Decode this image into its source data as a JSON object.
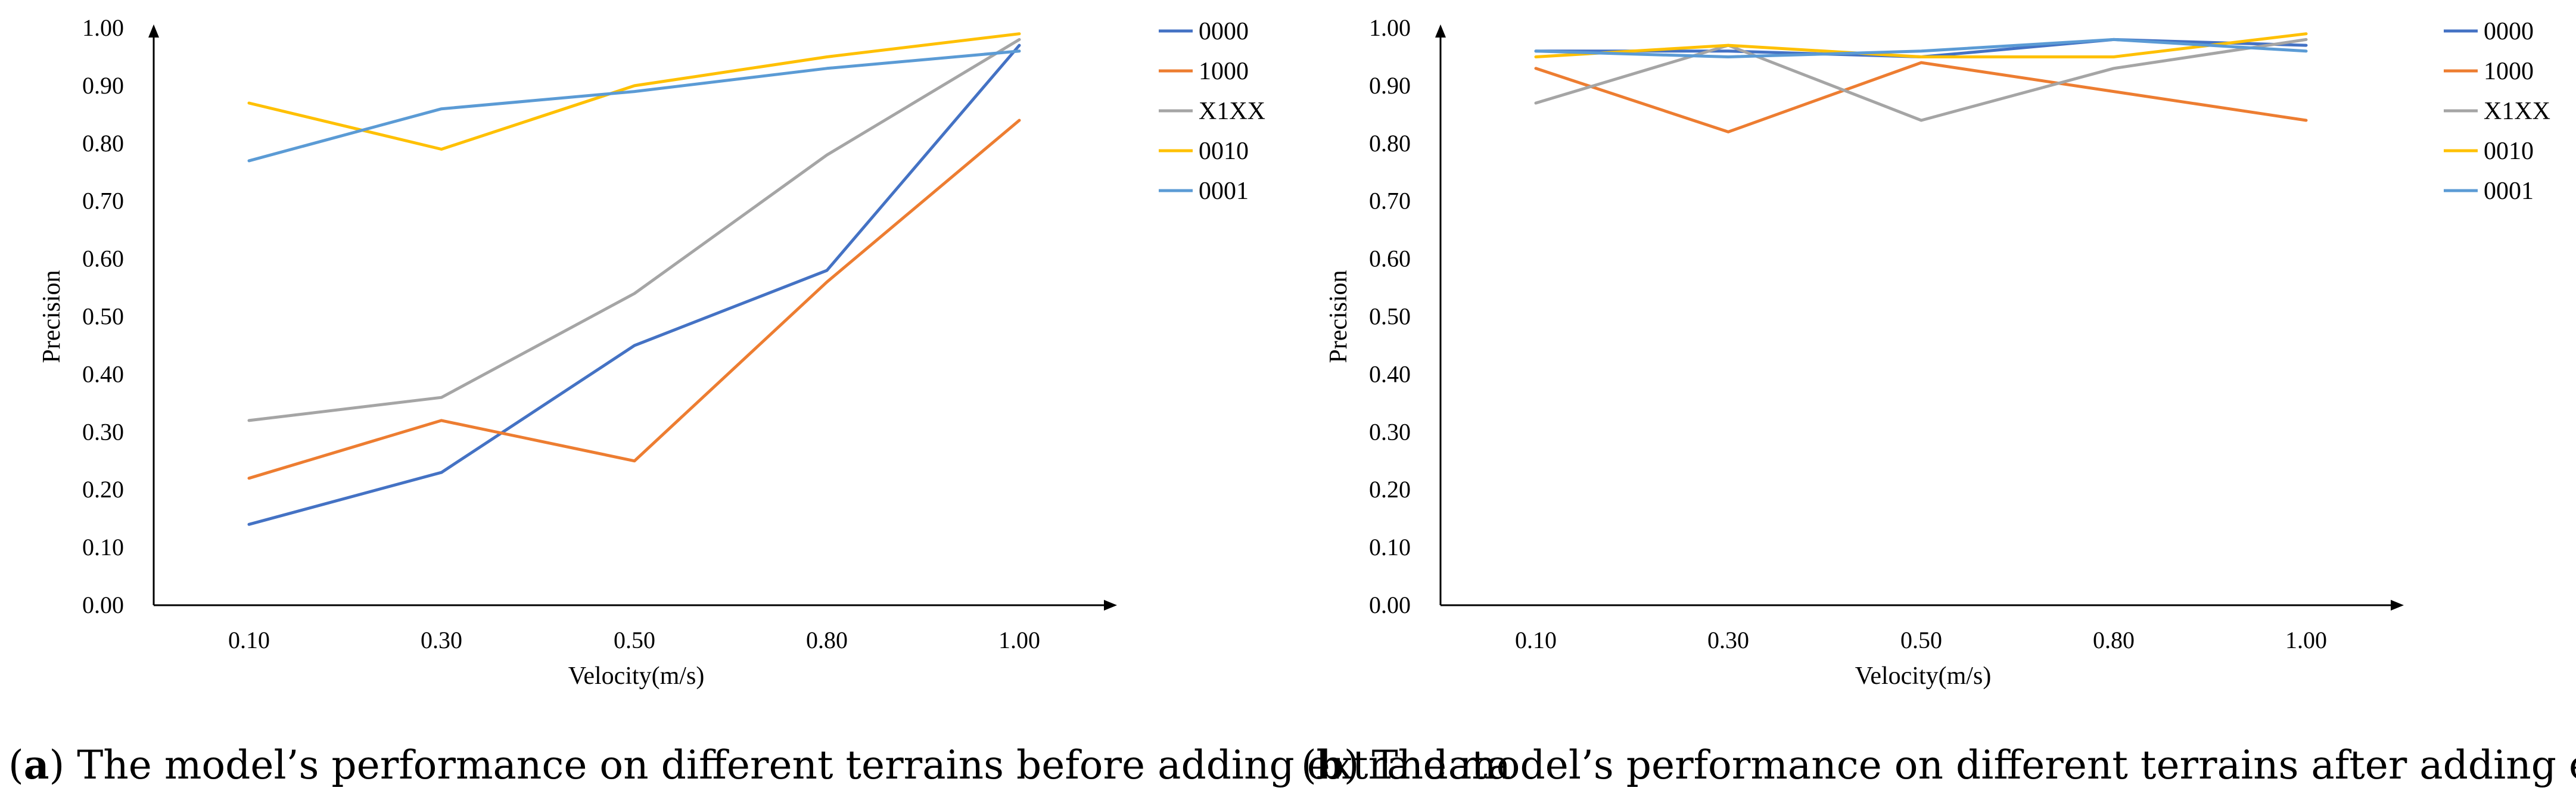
{
  "chart_data": [
    {
      "type": "line",
      "title": "",
      "xlabel": "Velocity(m/s)",
      "ylabel": "Precision",
      "categories": [
        "0.10",
        "0.30",
        "0.50",
        "0.80",
        "1.00"
      ],
      "ylim": [
        0,
        1
      ],
      "yticks": [
        "0.00",
        "0.10",
        "0.20",
        "0.30",
        "0.40",
        "0.50",
        "0.60",
        "0.70",
        "0.80",
        "0.90",
        "1.00"
      ],
      "grid": false,
      "legend_position": "right",
      "series": [
        {
          "name": "0000",
          "color": "#4472C4",
          "values": [
            0.14,
            0.23,
            0.45,
            0.58,
            0.97
          ]
        },
        {
          "name": "1000",
          "color": "#ED7D31",
          "values": [
            0.22,
            0.32,
            0.25,
            0.56,
            0.84
          ]
        },
        {
          "name": "X1XX",
          "color": "#A5A5A5",
          "values": [
            0.32,
            0.36,
            0.54,
            0.78,
            0.98
          ]
        },
        {
          "name": "0010",
          "color": "#FFC000",
          "values": [
            0.87,
            0.79,
            0.9,
            0.95,
            0.99
          ]
        },
        {
          "name": "0001",
          "color": "#5B9BD5",
          "values": [
            0.77,
            0.86,
            0.89,
            0.93,
            0.96
          ]
        }
      ],
      "caption_letter": "a",
      "caption_text": "The model’s performance on different terrains before adding extra data"
    },
    {
      "type": "line",
      "title": "",
      "xlabel": "Velocity(m/s)",
      "ylabel": "Precision",
      "categories": [
        "0.10",
        "0.30",
        "0.50",
        "0.80",
        "1.00"
      ],
      "ylim": [
        0,
        1
      ],
      "yticks": [
        "0.00",
        "0.10",
        "0.20",
        "0.30",
        "0.40",
        "0.50",
        "0.60",
        "0.70",
        "0.80",
        "0.90",
        "1.00"
      ],
      "grid": false,
      "legend_position": "right",
      "series": [
        {
          "name": "0000",
          "color": "#4472C4",
          "values": [
            0.96,
            0.96,
            0.95,
            0.98,
            0.97
          ]
        },
        {
          "name": "1000",
          "color": "#ED7D31",
          "values": [
            0.93,
            0.82,
            0.94,
            0.89,
            0.84
          ]
        },
        {
          "name": "X1XX",
          "color": "#A5A5A5",
          "values": [
            0.87,
            0.97,
            0.84,
            0.93,
            0.98
          ]
        },
        {
          "name": "0010",
          "color": "#FFC000",
          "values": [
            0.95,
            0.97,
            0.95,
            0.95,
            0.99
          ]
        },
        {
          "name": "0001",
          "color": "#5B9BD5",
          "values": [
            0.96,
            0.95,
            0.96,
            0.98,
            0.96
          ]
        }
      ],
      "caption_letter": "b",
      "caption_text": "The model’s performance on different terrains after adding extra data"
    }
  ]
}
